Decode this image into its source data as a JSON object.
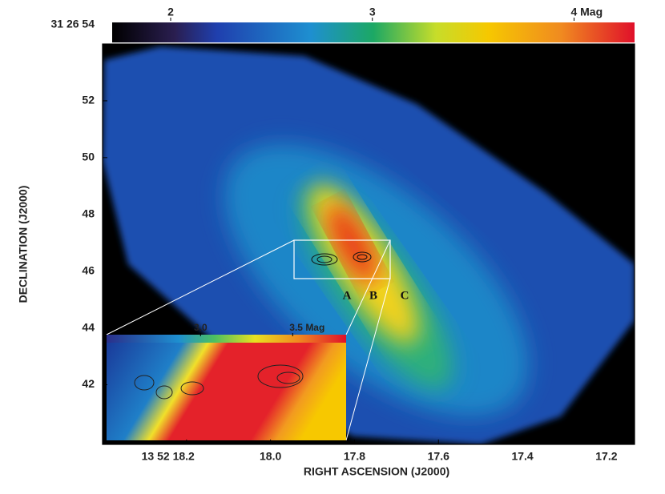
{
  "chart_data": {
    "type": "image",
    "xlabel": "RIGHT ASCENSION (J2000)",
    "ylabel": "DECLINATION (J2000)",
    "xlim": [
      18.4,
      17.133
    ],
    "xticks": [
      {
        "value": 18.2,
        "label": "13 52 18.2"
      },
      {
        "value": 18.0,
        "label": "18.0"
      },
      17.8,
      17.6,
      17.4,
      17.2
    ],
    "ylim": [
      39.9,
      54.0
    ],
    "yticks": [
      {
        "value": 54,
        "label": "31 26 54"
      },
      52,
      50,
      48,
      46,
      44,
      42
    ],
    "colorbar": {
      "clim": [
        1.71,
        4.3
      ],
      "ticks": [
        2,
        3,
        {
          "value": 4,
          "label": "4 Mag"
        }
      ]
    },
    "inset_colorbar": {
      "clim": [
        2.49,
        3.79
      ],
      "ticks": [
        {
          "value": 3.0,
          "label": "3.0"
        },
        {
          "value": 3.5,
          "label": "3.5 Mag"
        }
      ]
    },
    "annotations": [
      "A",
      "B",
      "C"
    ]
  }
}
